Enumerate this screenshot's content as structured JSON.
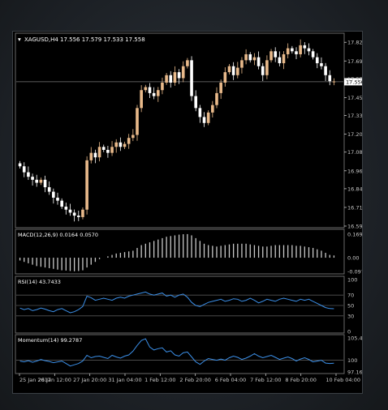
{
  "symbol_header": "XAGUSD,H4  17.556 17.579 17.533 17.558",
  "current_price_label": "17.556",
  "colors": {
    "bull": "#e8b98a",
    "bear": "#ffffff",
    "line": "#3b8fe8",
    "histogram": "#c8c8c8",
    "grid": "#555555",
    "text": "#c8c8c8"
  },
  "chart_data": [
    {
      "type": "candlestick",
      "title": "XAGUSD,H4",
      "x_labels": [
        "25 Jan 2017",
        "26 Jan 12:00",
        "27 Jan 20:00",
        "31 Jan 04:00",
        "1 Feb 12:00",
        "2 Feb 20:00",
        "6 Feb 04:00",
        "7 Feb 12:00",
        "8 Feb 20:00",
        "10 Feb 04:00"
      ],
      "y_ticks": [
        "17.820",
        "17.695",
        "17.575",
        "17.450",
        "17.330",
        "17.205",
        "17.085",
        "16.960",
        "16.840",
        "16.715",
        "16.590"
      ],
      "ylim": [
        16.59,
        17.87
      ],
      "current_price": 17.556,
      "last_bar": {
        "open": 17.556,
        "high": 17.579,
        "low": 17.533,
        "close": 17.558
      },
      "close_path": [
        16.99,
        16.95,
        16.92,
        16.9,
        16.88,
        16.9,
        16.85,
        16.82,
        16.78,
        16.76,
        16.72,
        16.7,
        16.68,
        16.66,
        16.65,
        16.7,
        17.03,
        17.08,
        17.05,
        17.12,
        17.1,
        17.08,
        17.12,
        17.15,
        17.12,
        17.14,
        17.18,
        17.2,
        17.38,
        17.5,
        17.52,
        17.48,
        17.46,
        17.5,
        17.55,
        17.6,
        17.55,
        17.62,
        17.58,
        17.66,
        17.7,
        17.46,
        17.38,
        17.32,
        17.28,
        17.35,
        17.4,
        17.48,
        17.55,
        17.62,
        17.66,
        17.6,
        17.65,
        17.7,
        17.74,
        17.7,
        17.72,
        17.66,
        17.6,
        17.7,
        17.76,
        17.72,
        17.68,
        17.74,
        17.78,
        17.76,
        17.74,
        17.8,
        17.78,
        17.76,
        17.72,
        17.68,
        17.66,
        17.6,
        17.56,
        17.56
      ]
    },
    {
      "type": "bar",
      "title": "MACD(12,26,9) 0.0164 0.0570",
      "y_ticks": [
        "0.169",
        "0.00",
        "-0.0971"
      ],
      "ylim": [
        -0.11,
        0.18
      ],
      "values": [
        -0.02,
        -0.03,
        -0.04,
        -0.05,
        -0.06,
        -0.065,
        -0.07,
        -0.075,
        -0.08,
        -0.085,
        -0.09,
        -0.092,
        -0.095,
        -0.097,
        -0.095,
        -0.09,
        -0.07,
        -0.05,
        -0.03,
        -0.01,
        0.0,
        0.01,
        0.02,
        0.03,
        0.035,
        0.04,
        0.045,
        0.05,
        0.07,
        0.09,
        0.1,
        0.11,
        0.12,
        0.13,
        0.14,
        0.15,
        0.155,
        0.16,
        0.165,
        0.168,
        0.169,
        0.16,
        0.14,
        0.12,
        0.1,
        0.09,
        0.085,
        0.08,
        0.085,
        0.09,
        0.095,
        0.1,
        0.1,
        0.1,
        0.1,
        0.095,
        0.09,
        0.085,
        0.08,
        0.08,
        0.085,
        0.09,
        0.09,
        0.09,
        0.09,
        0.09,
        0.085,
        0.085,
        0.08,
        0.075,
        0.07,
        0.06,
        0.05,
        0.035,
        0.02,
        0.016
      ]
    },
    {
      "type": "line",
      "title": "RSI(14) 43.7433",
      "y_ticks": [
        "100",
        "70",
        "50",
        "30",
        "0"
      ],
      "levels": [
        70,
        50,
        30
      ],
      "ylim": [
        0,
        100
      ],
      "values": [
        45,
        42,
        44,
        40,
        42,
        45,
        43,
        40,
        38,
        42,
        44,
        40,
        36,
        38,
        42,
        48,
        68,
        65,
        60,
        62,
        64,
        62,
        60,
        64,
        66,
        64,
        68,
        70,
        72,
        74,
        76,
        72,
        70,
        72,
        74,
        68,
        70,
        66,
        70,
        72,
        66,
        56,
        50,
        48,
        52,
        56,
        58,
        60,
        62,
        58,
        60,
        63,
        62,
        58,
        60,
        64,
        60,
        55,
        58,
        62,
        60,
        58,
        62,
        64,
        62,
        60,
        58,
        62,
        60,
        62,
        58,
        54,
        50,
        46,
        44,
        43.7433
      ]
    },
    {
      "type": "line",
      "title": "Momentum(14) 99.2787",
      "y_ticks": [
        "105.4201",
        "100",
        "97.1656"
      ],
      "levels": [
        100
      ],
      "ylim": [
        97.1656,
        105.4201
      ],
      "values": [
        99.8,
        99.6,
        99.9,
        99.5,
        99.8,
        100.2,
        99.9,
        99.7,
        99.4,
        99.6,
        99.8,
        99.2,
        98.6,
        98.9,
        99.2,
        99.8,
        101.2,
        100.6,
        100.9,
        101.0,
        100.7,
        100.4,
        101.2,
        100.8,
        100.5,
        101.0,
        101.3,
        102.2,
        103.6,
        104.8,
        105.2,
        103.2,
        102.5,
        102.8,
        103.0,
        102.0,
        102.3,
        101.3,
        101.0,
        101.8,
        102.0,
        100.8,
        99.6,
        99.0,
        99.8,
        100.4,
        100.2,
        100.0,
        100.3,
        100.0,
        100.6,
        101.0,
        100.7,
        100.2,
        100.5,
        101.0,
        101.6,
        101.0,
        100.6,
        100.9,
        101.2,
        100.7,
        100.2,
        100.5,
        100.8,
        100.4,
        99.8,
        100.3,
        100.6,
        100.2,
        99.6,
        99.8,
        100.0,
        99.3,
        99.2,
        99.2787
      ]
    }
  ]
}
